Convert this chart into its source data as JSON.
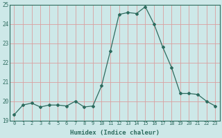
{
  "x": [
    0,
    1,
    2,
    3,
    4,
    5,
    6,
    7,
    8,
    9,
    10,
    11,
    12,
    13,
    14,
    15,
    16,
    17,
    18,
    19,
    20,
    21,
    22,
    23
  ],
  "y": [
    19.3,
    19.8,
    19.9,
    19.7,
    19.8,
    19.8,
    19.75,
    20.0,
    19.7,
    19.75,
    20.8,
    22.6,
    24.5,
    24.6,
    24.55,
    24.9,
    24.0,
    22.8,
    21.75,
    20.4,
    20.4,
    20.35,
    20.0,
    19.75
  ],
  "xlabel": "Humidex (Indice chaleur)",
  "ylim": [
    19,
    25
  ],
  "xlim": [
    -0.5,
    23.5
  ],
  "line_color": "#2d6b5e",
  "marker": "D",
  "marker_size": 2.0,
  "bg_color": "#cde8e8",
  "grid_color": "#d9a0a0",
  "tick_color": "#2d6b5e",
  "label_color": "#2d6b5e",
  "yticks": [
    19,
    20,
    21,
    22,
    23,
    24,
    25
  ],
  "xticks": [
    0,
    1,
    2,
    3,
    4,
    5,
    6,
    7,
    8,
    9,
    10,
    11,
    12,
    13,
    14,
    15,
    16,
    17,
    18,
    19,
    20,
    21,
    22,
    23
  ]
}
